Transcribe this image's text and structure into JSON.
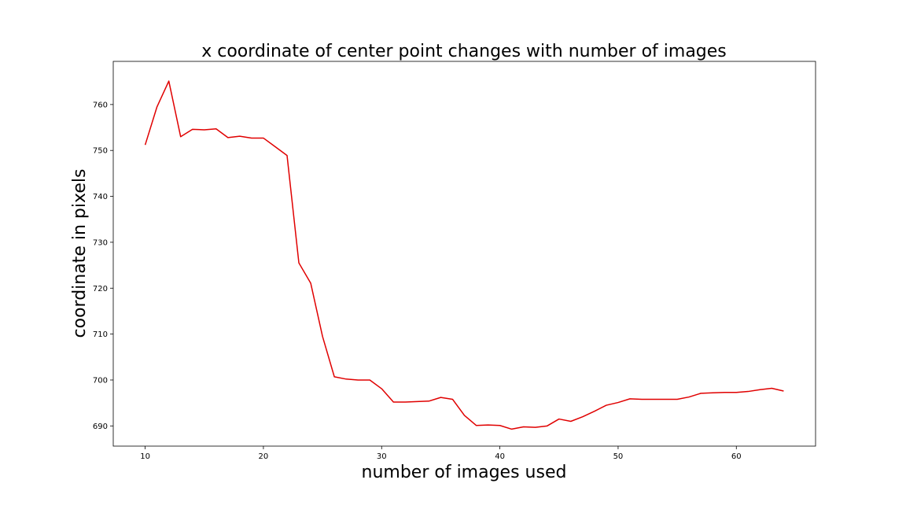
{
  "chart_data": {
    "type": "line",
    "title": "x coordinate of center point changes with number of images",
    "xlabel": "number of images used",
    "ylabel": "coordinate in pixels",
    "xlim": [
      7.3,
      66.7
    ],
    "ylim": [
      685.6,
      769.4
    ],
    "xticks": [
      10,
      20,
      30,
      40,
      50,
      60
    ],
    "yticks": [
      690,
      700,
      710,
      720,
      730,
      740,
      750,
      760
    ],
    "grid": false,
    "line_color": "#e00000",
    "series": [
      {
        "x": [
          10,
          11,
          12,
          13,
          14,
          15,
          16,
          17,
          18,
          19,
          20,
          21,
          22,
          23,
          24,
          25,
          26,
          27,
          28,
          29,
          30,
          31,
          32,
          33,
          34,
          35,
          36,
          37,
          38,
          39,
          40,
          41,
          42,
          43,
          44,
          45,
          46,
          47,
          48,
          49,
          50,
          51,
          52,
          53,
          54,
          55,
          56,
          57,
          58,
          59,
          60,
          61,
          62,
          63,
          64
        ],
        "y": [
          751.2,
          759.5,
          765.1,
          753.0,
          754.6,
          754.5,
          754.7,
          752.8,
          753.1,
          752.7,
          752.7,
          750.8,
          748.9,
          725.5,
          721.1,
          709.5,
          700.7,
          700.2,
          700.0,
          700.0,
          698.1,
          695.2,
          695.2,
          695.3,
          695.4,
          696.2,
          695.8,
          692.3,
          690.1,
          690.2,
          690.1,
          689.3,
          689.8,
          689.7,
          690.0,
          691.5,
          691.0,
          692.0,
          693.2,
          694.5,
          695.1,
          695.9,
          695.8,
          695.8,
          695.8,
          695.8,
          696.3,
          697.1,
          697.2,
          697.3,
          697.3,
          697.5,
          697.9,
          698.2,
          697.6
        ]
      }
    ]
  }
}
